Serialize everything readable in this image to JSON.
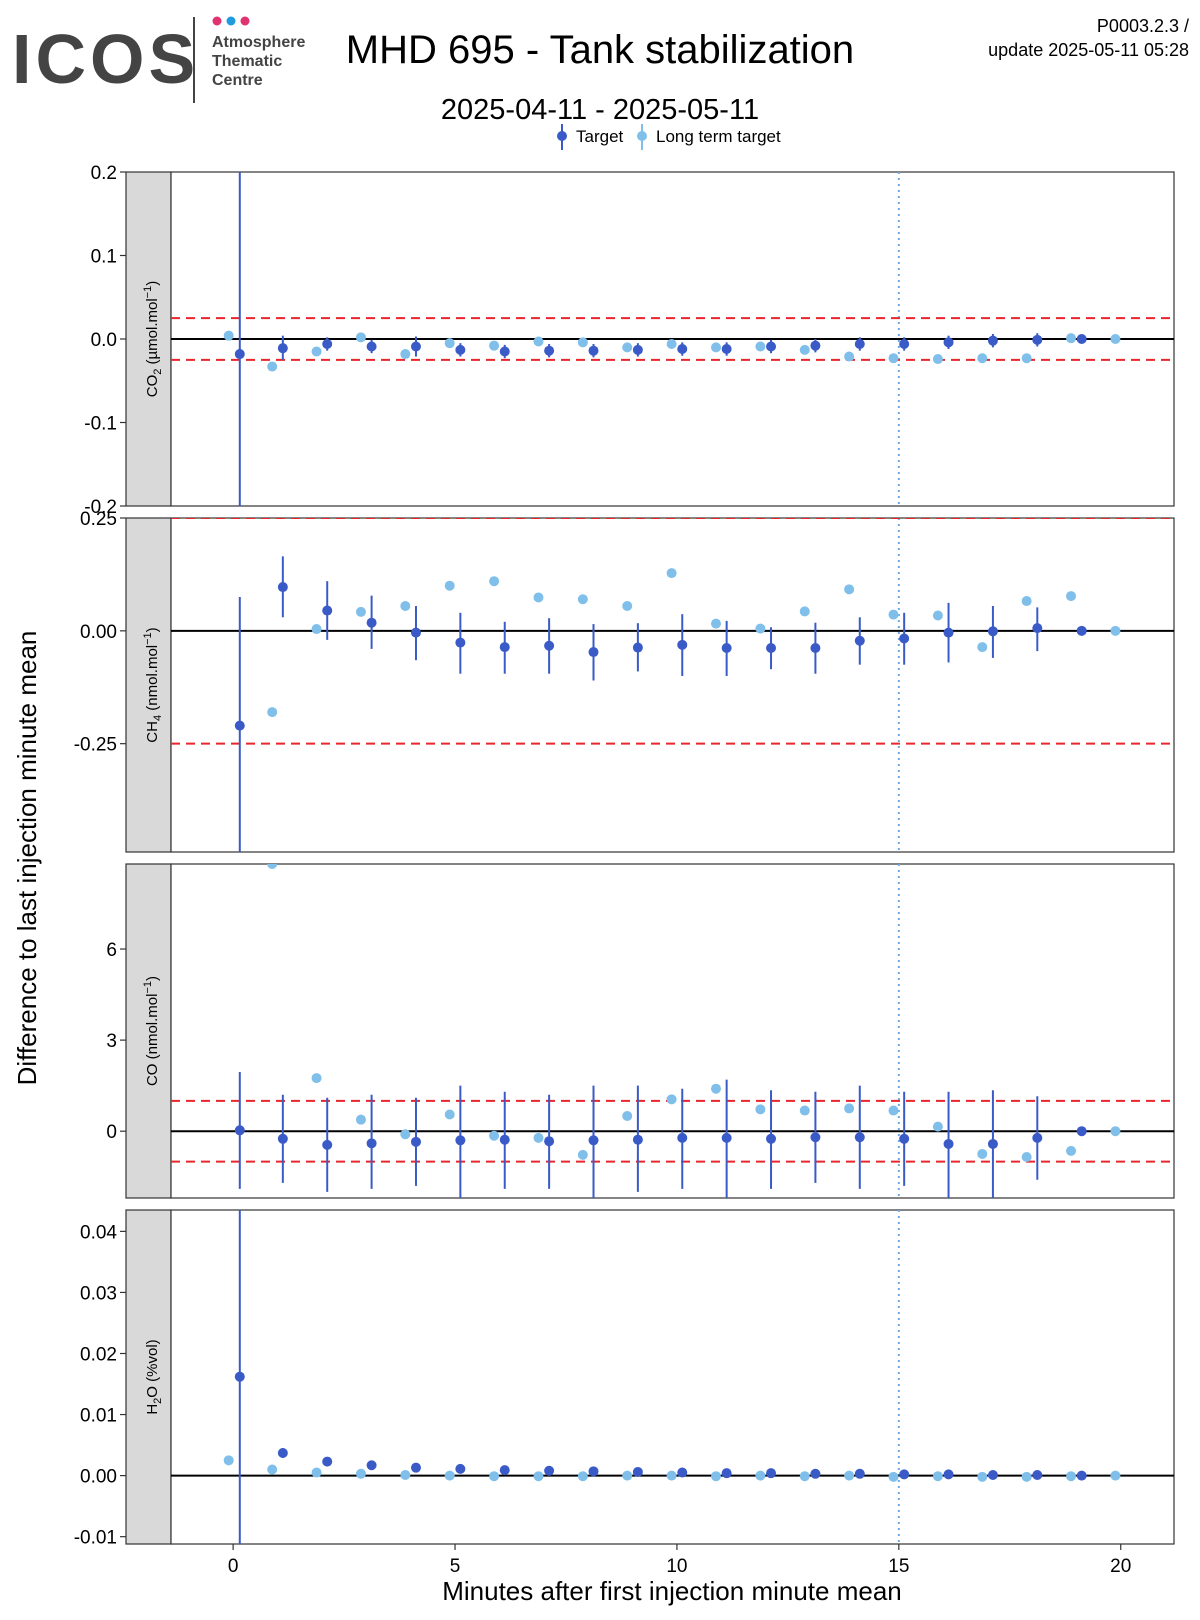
{
  "header": {
    "logo_text": "ICOS",
    "logo_sub": [
      "Atmosphere",
      "Thematic",
      "Centre"
    ],
    "title": "MHD 695 - Tank stabilization",
    "subtitle": "2025-04-11 - 2025-05-11",
    "version": "P0003.2.3 /",
    "update": "update  2025-05-11 05:28"
  },
  "colors": {
    "target": "#3a5bc7",
    "long_term_target": "#7fbfea",
    "threshold": "#e8262b",
    "vline": "#6fa8e6",
    "strip_bg": "#d9d9d9"
  },
  "chart_data": {
    "type": "scatter",
    "xlabel": "Minutes after first injection minute mean",
    "ylabel": "Difference to last injection minute mean",
    "xlim": [
      -1.4,
      21.2
    ],
    "xticks": [
      0,
      5,
      10,
      15,
      20
    ],
    "vline_x": 15,
    "legend": {
      "placement": "top",
      "entries": [
        {
          "key": "target",
          "label": "Target"
        },
        {
          "key": "long_term_target",
          "label": "Long term target"
        }
      ]
    },
    "panels": [
      {
        "strip": "CO2 (µmol.mol-1)",
        "ylim": [
          -0.2,
          0.2
        ],
        "yticks": [
          -0.2,
          -0.1,
          0.0,
          0.1,
          0.2
        ],
        "ytick_labels": [
          "-0.2",
          "-0.1",
          "0.0",
          "0.1",
          "0.2"
        ],
        "thresholds": [
          0.025,
          -0.025
        ],
        "target": [
          {
            "x": 0.15,
            "y": -0.018,
            "lo": -0.25,
            "hi": 0.25
          },
          {
            "x": 1.12,
            "y": -0.011,
            "lo": -0.025,
            "hi": 0.004
          },
          {
            "x": 2.12,
            "y": -0.006,
            "lo": -0.014,
            "hi": 0.002
          },
          {
            "x": 3.12,
            "y": -0.009,
            "lo": -0.017,
            "hi": -0.001
          },
          {
            "x": 4.12,
            "y": -0.009,
            "lo": -0.021,
            "hi": 0.003
          },
          {
            "x": 5.12,
            "y": -0.013,
            "lo": -0.021,
            "hi": -0.005
          },
          {
            "x": 6.12,
            "y": -0.015,
            "lo": -0.023,
            "hi": -0.007
          },
          {
            "x": 7.12,
            "y": -0.014,
            "lo": -0.022,
            "hi": -0.006
          },
          {
            "x": 8.12,
            "y": -0.014,
            "lo": -0.022,
            "hi": -0.006
          },
          {
            "x": 9.12,
            "y": -0.013,
            "lo": -0.021,
            "hi": -0.005
          },
          {
            "x": 10.12,
            "y": -0.012,
            "lo": -0.02,
            "hi": -0.004
          },
          {
            "x": 11.12,
            "y": -0.012,
            "lo": -0.02,
            "hi": -0.004
          },
          {
            "x": 12.12,
            "y": -0.009,
            "lo": -0.017,
            "hi": -0.001
          },
          {
            "x": 13.12,
            "y": -0.008,
            "lo": -0.016,
            "hi": 0.0
          },
          {
            "x": 14.12,
            "y": -0.006,
            "lo": -0.014,
            "hi": 0.002
          },
          {
            "x": 15.12,
            "y": -0.006,
            "lo": -0.014,
            "hi": 0.002
          },
          {
            "x": 16.12,
            "y": -0.004,
            "lo": -0.012,
            "hi": 0.004
          },
          {
            "x": 17.12,
            "y": -0.002,
            "lo": -0.01,
            "hi": 0.006
          },
          {
            "x": 18.12,
            "y": -0.001,
            "lo": -0.009,
            "hi": 0.007
          },
          {
            "x": 19.12,
            "y": 0.0,
            "lo": -0.003,
            "hi": 0.003
          }
        ],
        "long_term": [
          {
            "x": -0.1,
            "y": 0.004
          },
          {
            "x": 0.88,
            "y": -0.033
          },
          {
            "x": 1.88,
            "y": -0.015
          },
          {
            "x": 2.88,
            "y": 0.002
          },
          {
            "x": 3.88,
            "y": -0.018
          },
          {
            "x": 4.88,
            "y": -0.005
          },
          {
            "x": 5.88,
            "y": -0.008
          },
          {
            "x": 6.88,
            "y": -0.003
          },
          {
            "x": 7.88,
            "y": -0.004
          },
          {
            "x": 8.88,
            "y": -0.01
          },
          {
            "x": 9.88,
            "y": -0.006
          },
          {
            "x": 10.88,
            "y": -0.01
          },
          {
            "x": 11.88,
            "y": -0.009
          },
          {
            "x": 12.88,
            "y": -0.013
          },
          {
            "x": 13.88,
            "y": -0.021
          },
          {
            "x": 14.88,
            "y": -0.023
          },
          {
            "x": 15.88,
            "y": -0.024
          },
          {
            "x": 16.88,
            "y": -0.023
          },
          {
            "x": 17.88,
            "y": -0.023
          },
          {
            "x": 18.88,
            "y": 0.001
          },
          {
            "x": 19.88,
            "y": 0.0
          }
        ]
      },
      {
        "strip": "CH4 (nmol.mol-1)",
        "ylim": [
          -0.49,
          0.25
        ],
        "yticks": [
          -0.25,
          0.0,
          0.25
        ],
        "ytick_labels": [
          "-0.25",
          "0.00",
          "0.25"
        ],
        "thresholds": [
          0.25,
          -0.25
        ],
        "target": [
          {
            "x": 0.15,
            "y": -0.21,
            "lo": -0.55,
            "hi": 0.075
          },
          {
            "x": 1.12,
            "y": 0.097,
            "lo": 0.03,
            "hi": 0.165
          },
          {
            "x": 2.12,
            "y": 0.045,
            "lo": -0.02,
            "hi": 0.11
          },
          {
            "x": 3.12,
            "y": 0.018,
            "lo": -0.04,
            "hi": 0.078
          },
          {
            "x": 4.12,
            "y": -0.004,
            "lo": -0.065,
            "hi": 0.055
          },
          {
            "x": 5.12,
            "y": -0.026,
            "lo": -0.095,
            "hi": 0.04
          },
          {
            "x": 6.12,
            "y": -0.036,
            "lo": -0.095,
            "hi": 0.02
          },
          {
            "x": 7.12,
            "y": -0.033,
            "lo": -0.095,
            "hi": 0.028
          },
          {
            "x": 8.12,
            "y": -0.047,
            "lo": -0.11,
            "hi": 0.015
          },
          {
            "x": 9.12,
            "y": -0.037,
            "lo": -0.09,
            "hi": 0.017
          },
          {
            "x": 10.12,
            "y": -0.031,
            "lo": -0.1,
            "hi": 0.037
          },
          {
            "x": 11.12,
            "y": -0.038,
            "lo": -0.1,
            "hi": 0.022
          },
          {
            "x": 12.12,
            "y": -0.038,
            "lo": -0.085,
            "hi": 0.008
          },
          {
            "x": 13.12,
            "y": -0.038,
            "lo": -0.095,
            "hi": 0.018
          },
          {
            "x": 14.12,
            "y": -0.022,
            "lo": -0.075,
            "hi": 0.03
          },
          {
            "x": 15.12,
            "y": -0.017,
            "lo": -0.075,
            "hi": 0.04
          },
          {
            "x": 16.12,
            "y": -0.004,
            "lo": -0.07,
            "hi": 0.062
          },
          {
            "x": 17.12,
            "y": -0.001,
            "lo": -0.06,
            "hi": 0.055
          },
          {
            "x": 18.12,
            "y": 0.006,
            "lo": -0.045,
            "hi": 0.052
          },
          {
            "x": 19.12,
            "y": 0.0,
            "lo": -0.004,
            "hi": 0.004
          }
        ],
        "long_term": [
          {
            "x": 0.88,
            "y": -0.18
          },
          {
            "x": 1.88,
            "y": 0.004
          },
          {
            "x": 2.88,
            "y": 0.042
          },
          {
            "x": 3.88,
            "y": 0.055
          },
          {
            "x": 4.88,
            "y": 0.1
          },
          {
            "x": 5.88,
            "y": 0.11
          },
          {
            "x": 6.88,
            "y": 0.074
          },
          {
            "x": 7.88,
            "y": 0.07
          },
          {
            "x": 8.88,
            "y": 0.055
          },
          {
            "x": 9.88,
            "y": 0.128
          },
          {
            "x": 10.88,
            "y": 0.016
          },
          {
            "x": 11.88,
            "y": 0.005
          },
          {
            "x": 12.88,
            "y": 0.043
          },
          {
            "x": 13.88,
            "y": 0.092
          },
          {
            "x": 14.88,
            "y": 0.036
          },
          {
            "x": 15.88,
            "y": 0.034
          },
          {
            "x": 16.88,
            "y": -0.036
          },
          {
            "x": 17.88,
            "y": 0.066
          },
          {
            "x": 18.88,
            "y": 0.077
          },
          {
            "x": 19.88,
            "y": 0.0
          }
        ]
      },
      {
        "strip": "CO (nmol.mol-1)",
        "ylim": [
          -2.2,
          8.8
        ],
        "yticks": [
          0,
          3,
          6
        ],
        "ytick_labels": [
          "0",
          "3",
          "6"
        ],
        "thresholds": [
          1.0,
          -1.0
        ],
        "target": [
          {
            "x": 0.15,
            "y": 0.03,
            "lo": -1.9,
            "hi": 1.95
          },
          {
            "x": 1.12,
            "y": -0.25,
            "lo": -1.7,
            "hi": 1.2
          },
          {
            "x": 2.12,
            "y": -0.45,
            "lo": -2.0,
            "hi": 1.1
          },
          {
            "x": 3.12,
            "y": -0.4,
            "lo": -1.9,
            "hi": 1.2
          },
          {
            "x": 4.12,
            "y": -0.35,
            "lo": -1.8,
            "hi": 1.1
          },
          {
            "x": 5.12,
            "y": -0.3,
            "lo": -2.2,
            "hi": 1.5
          },
          {
            "x": 6.12,
            "y": -0.28,
            "lo": -1.9,
            "hi": 1.3
          },
          {
            "x": 7.12,
            "y": -0.33,
            "lo": -1.9,
            "hi": 1.2
          },
          {
            "x": 8.12,
            "y": -0.3,
            "lo": -2.2,
            "hi": 1.5
          },
          {
            "x": 9.12,
            "y": -0.28,
            "lo": -2.0,
            "hi": 1.5
          },
          {
            "x": 10.12,
            "y": -0.22,
            "lo": -1.9,
            "hi": 1.4
          },
          {
            "x": 11.12,
            "y": -0.22,
            "lo": -2.2,
            "hi": 1.7
          },
          {
            "x": 12.12,
            "y": -0.25,
            "lo": -1.9,
            "hi": 1.35
          },
          {
            "x": 13.12,
            "y": -0.2,
            "lo": -1.7,
            "hi": 1.3
          },
          {
            "x": 14.12,
            "y": -0.2,
            "lo": -1.9,
            "hi": 1.5
          },
          {
            "x": 15.12,
            "y": -0.25,
            "lo": -1.8,
            "hi": 1.3
          },
          {
            "x": 16.12,
            "y": -0.42,
            "lo": -2.2,
            "hi": 1.3
          },
          {
            "x": 17.12,
            "y": -0.42,
            "lo": -2.2,
            "hi": 1.35
          },
          {
            "x": 18.12,
            "y": -0.22,
            "lo": -1.6,
            "hi": 1.15
          },
          {
            "x": 19.12,
            "y": 0.0,
            "lo": -0.05,
            "hi": 0.05
          }
        ],
        "long_term": [
          {
            "x": 0.88,
            "y": 8.8
          },
          {
            "x": 1.88,
            "y": 1.75
          },
          {
            "x": 2.88,
            "y": 0.38
          },
          {
            "x": 3.88,
            "y": -0.1
          },
          {
            "x": 4.88,
            "y": 0.55
          },
          {
            "x": 5.88,
            "y": -0.15
          },
          {
            "x": 6.88,
            "y": -0.22
          },
          {
            "x": 7.88,
            "y": -0.78
          },
          {
            "x": 8.88,
            "y": 0.5
          },
          {
            "x": 9.88,
            "y": 1.05
          },
          {
            "x": 10.88,
            "y": 1.4
          },
          {
            "x": 11.88,
            "y": 0.72
          },
          {
            "x": 12.88,
            "y": 0.68
          },
          {
            "x": 13.88,
            "y": 0.75
          },
          {
            "x": 14.88,
            "y": 0.68
          },
          {
            "x": 15.88,
            "y": 0.15
          },
          {
            "x": 16.88,
            "y": -0.75
          },
          {
            "x": 17.88,
            "y": -0.85
          },
          {
            "x": 18.88,
            "y": -0.65
          },
          {
            "x": 19.88,
            "y": 0.0
          }
        ]
      },
      {
        "strip": "H2O (%vol)",
        "ylim": [
          -0.0112,
          0.0435
        ],
        "yticks": [
          -0.01,
          0.0,
          0.01,
          0.02,
          0.03,
          0.04
        ],
        "ytick_labels": [
          "-0.01",
          "0.00",
          "0.01",
          "0.02",
          "0.03",
          "0.04"
        ],
        "thresholds": [],
        "target": [
          {
            "x": 0.15,
            "y": 0.0162,
            "lo": -0.02,
            "hi": 0.06
          },
          {
            "x": 1.12,
            "y": 0.0037,
            "lo": 0.0029,
            "hi": 0.0045
          },
          {
            "x": 2.12,
            "y": 0.0023,
            "lo": 0.0021,
            "hi": 0.0025
          },
          {
            "x": 3.12,
            "y": 0.0017,
            "lo": 0.0015,
            "hi": 0.0019
          },
          {
            "x": 4.12,
            "y": 0.0013,
            "lo": 0.0011,
            "hi": 0.0015
          },
          {
            "x": 5.12,
            "y": 0.0011,
            "lo": 0.0009,
            "hi": 0.0013
          },
          {
            "x": 6.12,
            "y": 0.0009,
            "lo": 0.0007,
            "hi": 0.0011
          },
          {
            "x": 7.12,
            "y": 0.0008,
            "lo": 0.0006,
            "hi": 0.001
          },
          {
            "x": 8.12,
            "y": 0.0007,
            "lo": 0.0005,
            "hi": 0.0009
          },
          {
            "x": 9.12,
            "y": 0.0006,
            "lo": 0.0004,
            "hi": 0.0008
          },
          {
            "x": 10.12,
            "y": 0.0005,
            "lo": 0.0003,
            "hi": 0.0007
          },
          {
            "x": 11.12,
            "y": 0.0004,
            "lo": 0.0002,
            "hi": 0.0006
          },
          {
            "x": 12.12,
            "y": 0.0004,
            "lo": 0.0002,
            "hi": 0.0006
          },
          {
            "x": 13.12,
            "y": 0.0003,
            "lo": 0.0001,
            "hi": 0.0005
          },
          {
            "x": 14.12,
            "y": 0.0003,
            "lo": 0.0001,
            "hi": 0.0005
          },
          {
            "x": 15.12,
            "y": 0.0002,
            "lo": 0.0,
            "hi": 0.0004
          },
          {
            "x": 16.12,
            "y": 0.0002,
            "lo": 0.0,
            "hi": 0.0004
          },
          {
            "x": 17.12,
            "y": 0.0001,
            "lo": 0.0,
            "hi": 0.0002
          },
          {
            "x": 18.12,
            "y": 0.0001,
            "lo": 0.0,
            "hi": 0.0002
          },
          {
            "x": 19.12,
            "y": 0.0,
            "lo": 0.0,
            "hi": 0.0
          }
        ],
        "long_term": [
          {
            "x": -0.1,
            "y": 0.0025
          },
          {
            "x": 0.88,
            "y": 0.001
          },
          {
            "x": 1.88,
            "y": 0.0005
          },
          {
            "x": 2.88,
            "y": 0.0003
          },
          {
            "x": 3.88,
            "y": 0.0001
          },
          {
            "x": 4.88,
            "y": 0.0
          },
          {
            "x": 5.88,
            "y": -0.0001
          },
          {
            "x": 6.88,
            "y": -0.0001
          },
          {
            "x": 7.88,
            "y": -0.0001
          },
          {
            "x": 8.88,
            "y": 0.0
          },
          {
            "x": 9.88,
            "y": 0.0
          },
          {
            "x": 10.88,
            "y": -0.0001
          },
          {
            "x": 11.88,
            "y": 0.0
          },
          {
            "x": 12.88,
            "y": -0.0001
          },
          {
            "x": 13.88,
            "y": 0.0
          },
          {
            "x": 14.88,
            "y": -0.0002
          },
          {
            "x": 15.88,
            "y": -0.0001
          },
          {
            "x": 16.88,
            "y": -0.0002
          },
          {
            "x": 17.88,
            "y": -0.0002
          },
          {
            "x": 18.88,
            "y": -0.0001
          },
          {
            "x": 19.88,
            "y": 0.0
          }
        ]
      }
    ]
  }
}
